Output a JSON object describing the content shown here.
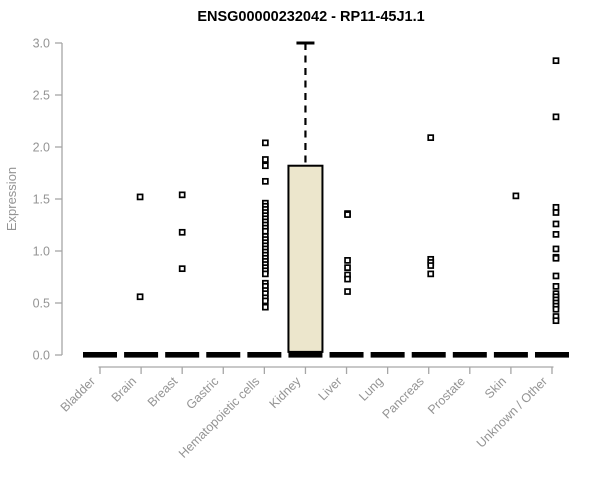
{
  "chart_data": {
    "type": "boxplot",
    "title": "ENSG00000232042 - RP11-45J1.1",
    "ylabel": "Expression",
    "xlabel": "",
    "ylim": [
      0.0,
      3.0
    ],
    "yticks": [
      "0.0",
      "0.5",
      "1.0",
      "1.5",
      "2.0",
      "2.5",
      "3.0"
    ],
    "grid": false,
    "legend": "none",
    "categories": [
      "Bladder",
      "Brain",
      "Breast",
      "Gastric",
      "Hematopoietic cells",
      "Kidney",
      "Liver",
      "Lung",
      "Pancreas",
      "Prostate",
      "Skin",
      "Unknown / Other"
    ],
    "series": [
      {
        "name": "Bladder",
        "median": 0.0,
        "points": []
      },
      {
        "name": "Brain",
        "median": 0.0,
        "points": [
          1.52,
          0.56
        ]
      },
      {
        "name": "Breast",
        "median": 0.0,
        "points": [
          1.54,
          1.18,
          0.83
        ]
      },
      {
        "name": "Gastric",
        "median": 0.0,
        "points": []
      },
      {
        "name": "Hematopoietic cells",
        "median": 0.0,
        "points": [
          2.04,
          1.88,
          1.82,
          1.67,
          1.46,
          1.43,
          1.4,
          1.37,
          1.34,
          1.31,
          1.28,
          1.25,
          1.22,
          1.19,
          1.14,
          1.11,
          1.08,
          1.05,
          1.02,
          0.99,
          0.96,
          0.93,
          0.9,
          0.87,
          0.84,
          0.81,
          0.78,
          0.69,
          0.66,
          0.62,
          0.59,
          0.55,
          0.52,
          0.46
        ]
      },
      {
        "name": "Kidney",
        "median": 0.0,
        "box": {
          "q1": 0.03,
          "q3": 1.82,
          "whisker_high": 3.0
        },
        "points": []
      },
      {
        "name": "Liver",
        "median": 0.0,
        "points": [
          1.36,
          1.35,
          0.91,
          0.84,
          0.77,
          0.73,
          0.61
        ]
      },
      {
        "name": "Lung",
        "median": 0.0,
        "points": []
      },
      {
        "name": "Pancreas",
        "median": 0.0,
        "points": [
          2.09,
          0.92,
          0.89,
          0.86,
          0.78
        ]
      },
      {
        "name": "Prostate",
        "median": 0.0,
        "points": []
      },
      {
        "name": "Skin",
        "median": 0.0,
        "points": [
          1.53
        ]
      },
      {
        "name": "Unknown / Other",
        "median": 0.0,
        "points": [
          2.83,
          2.29,
          1.42,
          1.37,
          1.26,
          1.16,
          1.02,
          0.94,
          0.93,
          0.76,
          0.66,
          0.59,
          0.56,
          0.53,
          0.5,
          0.47,
          0.44,
          0.37,
          0.33
        ]
      }
    ],
    "colors": {
      "box_fill": "#ECE6CC",
      "box_stroke": "#000000",
      "median": "#000000",
      "point_stroke": "#000000",
      "point_fill": "#ffffff",
      "axis": "#A6A6A6",
      "tick_label": "#949494",
      "title": "#000000"
    }
  }
}
